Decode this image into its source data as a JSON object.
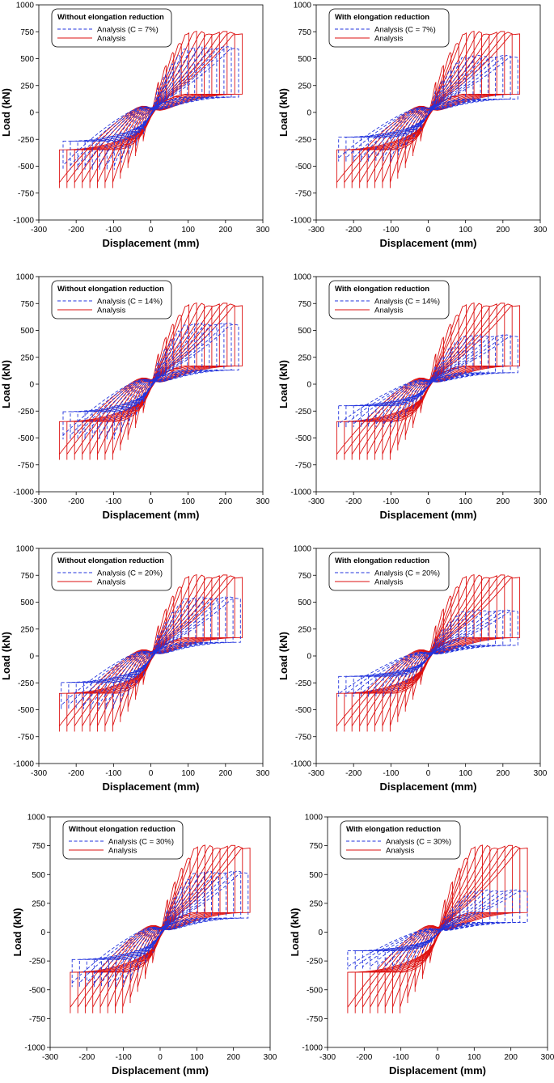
{
  "chart_data": [
    {
      "panel": "a1",
      "type": "line",
      "legend_title": "Without elongation reduction",
      "xlabel": "Displacement (mm)",
      "ylabel": "Load (kN)",
      "xlim": [
        -300,
        300
      ],
      "ylim": [
        -1000,
        1000
      ],
      "xticks": [
        "-300",
        "-200",
        "-100",
        "0",
        "100",
        "200",
        "300"
      ],
      "yticks": [
        "1000",
        "750",
        "500",
        "250",
        "0",
        "-250",
        "-500",
        "-750",
        "-1000"
      ],
      "legend_position": "top-left",
      "grid": false,
      "series": [
        {
          "name": "Analysis (C = 7%)",
          "color": "#2233dd",
          "dashed": true,
          "peak_pos": 600,
          "peak_neg": -560,
          "dmax": 235
        },
        {
          "name": "Analysis",
          "color": "#dd1111",
          "dashed": false,
          "peak_pos": 740,
          "peak_neg": -740,
          "dmax": 245
        }
      ]
    },
    {
      "panel": "b1",
      "type": "line",
      "legend_title": "With elongation reduction",
      "xlabel": "Displacement (mm)",
      "ylabel": "Load (kN)",
      "xlim": [
        -300,
        300
      ],
      "ylim": [
        -1000,
        1000
      ],
      "xticks": [
        "-300",
        "-200",
        "-100",
        "0",
        "100",
        "200",
        "300"
      ],
      "yticks": [
        "1000",
        "750",
        "500",
        "250",
        "0",
        "-250",
        "-500",
        "-750",
        "-1000"
      ],
      "legend_position": "top-left",
      "grid": false,
      "series": [
        {
          "name": "Analysis (C = 7%)",
          "color": "#2233dd",
          "dashed": true,
          "peak_pos": 520,
          "peak_neg": -480,
          "dmax": 240
        },
        {
          "name": "Analysis",
          "color": "#dd1111",
          "dashed": false,
          "peak_pos": 740,
          "peak_neg": -740,
          "dmax": 245
        }
      ]
    },
    {
      "panel": "a2",
      "type": "line",
      "legend_title": "Without elongation reduction",
      "xlabel": "Displacement (mm)",
      "ylabel": "Load (kN)",
      "xlim": [
        -300,
        300
      ],
      "ylim": [
        -1000,
        1000
      ],
      "xticks": [
        "-300",
        "-200",
        "-100",
        "0",
        "100",
        "200",
        "300"
      ],
      "yticks": [
        "1000",
        "750",
        "500",
        "250",
        "0",
        "-250",
        "-500",
        "-750",
        "-1000"
      ],
      "legend_position": "top-left",
      "grid": false,
      "series": [
        {
          "name": "Analysis (C = 14%)",
          "color": "#2233dd",
          "dashed": true,
          "peak_pos": 560,
          "peak_neg": -540,
          "dmax": 235
        },
        {
          "name": "Analysis",
          "color": "#dd1111",
          "dashed": false,
          "peak_pos": 740,
          "peak_neg": -740,
          "dmax": 245
        }
      ]
    },
    {
      "panel": "b2",
      "type": "line",
      "legend_title": "With elongation reduction",
      "xlabel": "Displacement (mm)",
      "ylabel": "Load (kN)",
      "xlim": [
        -300,
        300
      ],
      "ylim": [
        -1000,
        1000
      ],
      "xticks": [
        "-300",
        "-200",
        "-100",
        "0",
        "100",
        "200",
        "300"
      ],
      "yticks": [
        "1000",
        "750",
        "500",
        "250",
        "0",
        "-250",
        "-500",
        "-750",
        "-1000"
      ],
      "legend_position": "top-left",
      "grid": false,
      "series": [
        {
          "name": "Analysis (C = 14%)",
          "color": "#2233dd",
          "dashed": true,
          "peak_pos": 450,
          "peak_neg": -420,
          "dmax": 240
        },
        {
          "name": "Analysis",
          "color": "#dd1111",
          "dashed": false,
          "peak_pos": 740,
          "peak_neg": -740,
          "dmax": 245
        }
      ]
    },
    {
      "panel": "a3",
      "type": "line",
      "legend_title": "Without elongation reduction",
      "xlabel": "Displacement (mm)",
      "ylabel": "Load (kN)",
      "xlim": [
        -300,
        300
      ],
      "ylim": [
        -1000,
        1000
      ],
      "xticks": [
        "-300",
        "-200",
        "-100",
        "0",
        "100",
        "200",
        "300"
      ],
      "yticks": [
        "1000",
        "750",
        "500",
        "250",
        "0",
        "-250",
        "-500",
        "-750",
        "-1000"
      ],
      "legend_position": "top-left",
      "grid": false,
      "series": [
        {
          "name": "Analysis (C = 20%)",
          "color": "#2233dd",
          "dashed": true,
          "peak_pos": 540,
          "peak_neg": -520,
          "dmax": 240
        },
        {
          "name": "Analysis",
          "color": "#dd1111",
          "dashed": false,
          "peak_pos": 740,
          "peak_neg": -740,
          "dmax": 245
        }
      ]
    },
    {
      "panel": "b3",
      "type": "line",
      "legend_title": "With elongation reduction",
      "xlabel": "Displacement (mm)",
      "ylabel": "Load (kN)",
      "xlim": [
        -300,
        300
      ],
      "ylim": [
        -1000,
        1000
      ],
      "xticks": [
        "-300",
        "-200",
        "-100",
        "0",
        "100",
        "200",
        "300"
      ],
      "yticks": [
        "1000",
        "750",
        "500",
        "250",
        "0",
        "-250",
        "-500",
        "-750",
        "-1000"
      ],
      "legend_position": "top-left",
      "grid": false,
      "series": [
        {
          "name": "Analysis (C = 20%)",
          "color": "#2233dd",
          "dashed": true,
          "peak_pos": 420,
          "peak_neg": -400,
          "dmax": 240
        },
        {
          "name": "Analysis",
          "color": "#dd1111",
          "dashed": false,
          "peak_pos": 740,
          "peak_neg": -740,
          "dmax": 245
        }
      ]
    },
    {
      "panel": "a4",
      "type": "line",
      "legend_title": "Without elongation reduction",
      "xlabel": "Displacement (mm)",
      "ylabel": "Load (kN)",
      "xlim": [
        -300,
        300
      ],
      "ylim": [
        -1000,
        1000
      ],
      "xticks": [
        "-300",
        "-200",
        "-100",
        "0",
        "100",
        "200",
        "300"
      ],
      "yticks": [
        "1000",
        "750",
        "500",
        "250",
        "0",
        "-250",
        "-500",
        "-750",
        "-1000"
      ],
      "legend_position": "top-left",
      "grid": false,
      "series": [
        {
          "name": "Analysis (C = 30%)",
          "color": "#2233dd",
          "dashed": true,
          "peak_pos": 520,
          "peak_neg": -500,
          "dmax": 240
        },
        {
          "name": "Analysis",
          "color": "#dd1111",
          "dashed": false,
          "peak_pos": 740,
          "peak_neg": -740,
          "dmax": 245
        }
      ]
    },
    {
      "panel": "b4",
      "type": "line",
      "legend_title": "With elongation reduction",
      "xlabel": "Displacement (mm)",
      "ylabel": "Load (kN)",
      "xlim": [
        -300,
        300
      ],
      "ylim": [
        -1000,
        1000
      ],
      "xticks": [
        "-300",
        "-200",
        "-100",
        "0",
        "100",
        "200",
        "300"
      ],
      "yticks": [
        "1000",
        "750",
        "500",
        "250",
        "0",
        "-250",
        "-500",
        "-750",
        "-1000"
      ],
      "legend_position": "top-left",
      "grid": false,
      "series": [
        {
          "name": "Analysis (C = 30%)",
          "color": "#2233dd",
          "dashed": true,
          "peak_pos": 360,
          "peak_neg": -340,
          "dmax": 245
        },
        {
          "name": "Analysis",
          "color": "#dd1111",
          "dashed": false,
          "peak_pos": 740,
          "peak_neg": -740,
          "dmax": 245
        }
      ]
    }
  ]
}
